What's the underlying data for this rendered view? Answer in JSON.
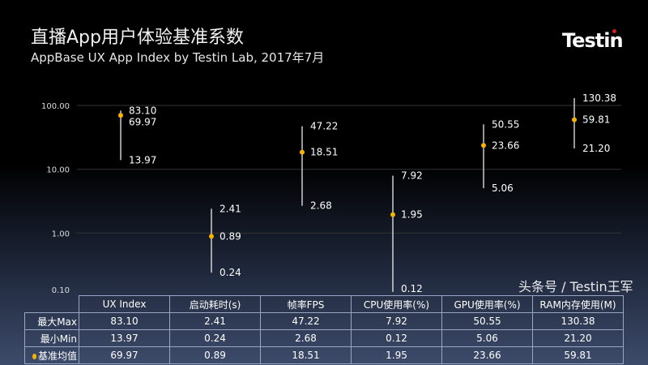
{
  "header": {
    "title": "直播App用户体验基准系数",
    "subtitle": "AppBase UX App Index by Testin Lab, 2017年7月",
    "logo": "Testin"
  },
  "chart_data": {
    "type": "high-low-mean",
    "yscale": "log",
    "ylim": [
      0.1,
      130.38
    ],
    "yticks": [
      "100.00",
      "10.00",
      "1.00",
      "0.10"
    ],
    "grid": true,
    "categories": [
      "UX Index",
      "启动耗时(s)",
      "帧率FPS",
      "CPU使用率(%)",
      "GPU使用率(%)",
      "RAM内存使用(M)"
    ],
    "max": [
      83.1,
      2.41,
      47.22,
      7.92,
      50.55,
      130.38
    ],
    "min": [
      13.97,
      0.24,
      2.68,
      0.12,
      5.06,
      21.2
    ],
    "mean": [
      69.97,
      0.89,
      18.51,
      1.95,
      23.66,
      59.81
    ],
    "max_labels": [
      "83.10",
      "2.41",
      "47.22",
      "7.92",
      "50.55",
      "130.38"
    ],
    "min_labels": [
      "13.97",
      "0.24",
      "2.68",
      "0.12",
      "5.06",
      "21.20"
    ],
    "mean_labels": [
      "69.97",
      "0.89",
      "18.51",
      "1.95",
      "23.66",
      "59.81"
    ],
    "colors": {
      "line": "#ffffff",
      "marker": "#f5b400",
      "grid": "#333333"
    }
  },
  "table": {
    "row_headers": [
      "最大Max",
      "最小Min",
      "基准均值"
    ],
    "rows": [
      [
        "83.10",
        "2.41",
        "47.22",
        "7.92",
        "50.55",
        "130.38"
      ],
      [
        "13.97",
        "0.24",
        "2.68",
        "0.12",
        "5.06",
        "21.20"
      ],
      [
        "69.97",
        "0.89",
        "18.51",
        "1.95",
        "23.66",
        "59.81"
      ]
    ]
  },
  "watermark": "头条号 / Testin王军"
}
